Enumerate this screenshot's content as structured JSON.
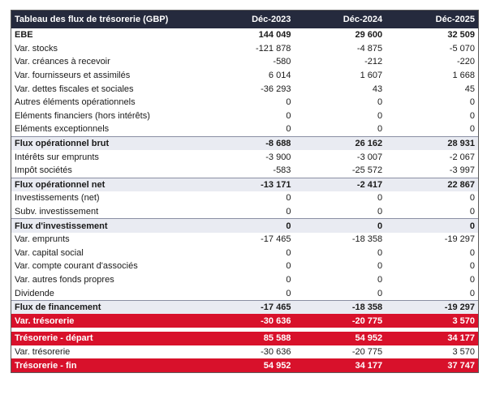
{
  "header": {
    "title": "Tableau des flux de trésorerie (GBP)",
    "col1": "Déc-2023",
    "col2": "Déc-2024",
    "col3": "Déc-2025"
  },
  "rows": [
    {
      "label": "EBE",
      "v1": "144 049",
      "v2": "29 600",
      "v3": "32 509"
    },
    {
      "label": "Var. stocks",
      "v1": "-121 878",
      "v2": "-4 875",
      "v3": "-5 070"
    },
    {
      "label": "Var. créances à recevoir",
      "v1": "-580",
      "v2": "-212",
      "v3": "-220"
    },
    {
      "label": "Var. fournisseurs et assimilés",
      "v1": "6 014",
      "v2": "1 607",
      "v3": "1 668"
    },
    {
      "label": "Var. dettes fiscales et sociales",
      "v1": "-36 293",
      "v2": "43",
      "v3": "45"
    },
    {
      "label": "Autres éléments opérationnels",
      "v1": "0",
      "v2": "0",
      "v3": "0"
    },
    {
      "label": "Eléments financiers (hors intérêts)",
      "v1": "0",
      "v2": "0",
      "v3": "0"
    },
    {
      "label": "Eléments exceptionnels",
      "v1": "0",
      "v2": "0",
      "v3": "0"
    },
    {
      "label": "Flux opérationnel brut",
      "v1": "-8 688",
      "v2": "26 162",
      "v3": "28 931"
    },
    {
      "label": "Intérêts sur emprunts",
      "v1": "-3 900",
      "v2": "-3 007",
      "v3": "-2 067"
    },
    {
      "label": "Impôt sociétés",
      "v1": "-583",
      "v2": "-25 572",
      "v3": "-3 997"
    },
    {
      "label": "Flux opérationnel net",
      "v1": "-13 171",
      "v2": "-2 417",
      "v3": "22 867"
    },
    {
      "label": "Investissements (net)",
      "v1": "0",
      "v2": "0",
      "v3": "0"
    },
    {
      "label": "Subv. investissement",
      "v1": "0",
      "v2": "0",
      "v3": "0"
    },
    {
      "label": "Flux d'investissement",
      "v1": "0",
      "v2": "0",
      "v3": "0"
    },
    {
      "label": "Var. emprunts",
      "v1": "-17 465",
      "v2": "-18 358",
      "v3": "-19 297"
    },
    {
      "label": "Var. capital social",
      "v1": "0",
      "v2": "0",
      "v3": "0"
    },
    {
      "label": "Var. compte courant d'associés",
      "v1": "0",
      "v2": "0",
      "v3": "0"
    },
    {
      "label": "Var. autres fonds propres",
      "v1": "0",
      "v2": "0",
      "v3": "0"
    },
    {
      "label": "Dividende",
      "v1": "0",
      "v2": "0",
      "v3": "0"
    },
    {
      "label": "Flux de financement",
      "v1": "-17 465",
      "v2": "-18 358",
      "v3": "-19 297"
    },
    {
      "label": "Var. trésorerie",
      "v1": "-30 636",
      "v2": "-20 775",
      "v3": "3 570"
    },
    {
      "label": "Trésorerie - départ",
      "v1": "85 588",
      "v2": "54 952",
      "v3": "34 177"
    },
    {
      "label": "Var. trésorerie",
      "v1": "-30 636",
      "v2": "-20 775",
      "v3": "3 570"
    },
    {
      "label": "Trésorerie - fin",
      "v1": "54 952",
      "v2": "34 177",
      "v3": "37 747"
    }
  ]
}
